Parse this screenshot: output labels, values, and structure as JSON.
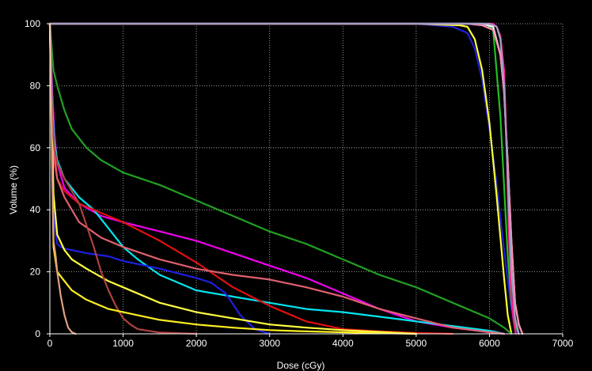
{
  "chart_data": {
    "type": "line",
    "title": "",
    "xlabel": "Dose (cGy)",
    "ylabel": "Volume (%)",
    "xlim": [
      0,
      7000
    ],
    "ylim": [
      0,
      100
    ],
    "xticks": [
      0,
      1000,
      2000,
      3000,
      4000,
      5000,
      6000,
      7000
    ],
    "yticks": [
      0,
      20,
      40,
      60,
      80,
      100
    ],
    "grid": true,
    "background": "#000000",
    "grid_color": "#bfbfbf",
    "series": [
      {
        "color": "#1f1fd8",
        "x": [
          0,
          5000,
          5500,
          5700,
          5800,
          5900,
          6000,
          6100,
          6200,
          6300,
          6350,
          6400
        ],
        "y": [
          100,
          100,
          99,
          97,
          92,
          82,
          66,
          48,
          27,
          8,
          2,
          0
        ]
      },
      {
        "color": "#ffff33",
        "x": [
          0,
          5000,
          5600,
          5700,
          5800,
          5900,
          6000,
          6100,
          6200,
          6250,
          6300
        ],
        "y": [
          100,
          100,
          99.5,
          99,
          95,
          85,
          68,
          44,
          18,
          6,
          0
        ]
      },
      {
        "color": "#22c022",
        "x": [
          0,
          5800,
          5950,
          6050,
          6150,
          6250,
          6300,
          6350,
          6400
        ],
        "y": [
          100,
          100,
          100,
          98,
          70,
          25,
          10,
          3,
          0
        ]
      },
      {
        "color": "#ffffff",
        "x": [
          0,
          5900,
          6050,
          6150,
          6200,
          6250,
          6300,
          6350,
          6400,
          6450
        ],
        "y": [
          100,
          100,
          99,
          90,
          78,
          55,
          30,
          10,
          3,
          0
        ]
      },
      {
        "color": "#ff8fb0",
        "x": [
          0,
          5700,
          5900,
          6050,
          6150,
          6200,
          6250,
          6300,
          6350,
          6400,
          6450
        ],
        "y": [
          100,
          100,
          99.5,
          98,
          90,
          78,
          55,
          30,
          10,
          3,
          0
        ]
      },
      {
        "color": "#ff1a8c",
        "x": [
          0,
          5950,
          6050,
          6100,
          6150,
          6200,
          6230,
          6260,
          6300,
          6330,
          6360
        ],
        "y": [
          100,
          100,
          100,
          99,
          96,
          85,
          65,
          35,
          12,
          4,
          0
        ]
      },
      {
        "color": "#a0a0c8",
        "x": [
          0,
          6000,
          6100,
          6150,
          6200,
          6250,
          6300,
          6350,
          6400
        ],
        "y": [
          100,
          100,
          99,
          95,
          80,
          50,
          20,
          5,
          0
        ]
      },
      {
        "color": "#22a022",
        "x": [
          0,
          50,
          100,
          200,
          300,
          500,
          700,
          1000,
          1500,
          2000,
          2500,
          3000,
          3500,
          4000,
          4500,
          5000,
          5500,
          6000,
          6200,
          6300
        ],
        "y": [
          100,
          85,
          80,
          72,
          66,
          60,
          56,
          52,
          48,
          43,
          38,
          33,
          29,
          24,
          19,
          15,
          10,
          5,
          2,
          0
        ]
      },
      {
        "color": "#ee00ee",
        "x": [
          0,
          30,
          60,
          100,
          200,
          400,
          700,
          1000,
          1500,
          2000,
          2500,
          3000,
          3500,
          4000,
          4500,
          5000,
          5500,
          6000,
          6200
        ],
        "y": [
          100,
          80,
          65,
          55,
          47,
          42,
          38,
          36,
          33,
          30,
          26,
          22,
          18,
          13,
          8,
          4,
          2,
          0.5,
          0
        ]
      },
      {
        "color": "#00e5ee",
        "x": [
          0,
          30,
          60,
          100,
          200,
          400,
          600,
          800,
          1000,
          1200,
          1500,
          2000,
          2500,
          3000,
          3500,
          4000,
          4500,
          5000,
          5500,
          6000,
          6200
        ],
        "y": [
          100,
          75,
          62,
          56,
          50,
          44,
          40,
          34,
          28,
          24,
          19,
          14,
          12,
          10,
          8,
          7,
          5.5,
          4,
          2.5,
          1,
          0
        ]
      },
      {
        "color": "#e01010",
        "x": [
          0,
          30,
          60,
          100,
          200,
          400,
          700,
          1000,
          1500,
          2000,
          2500,
          3000,
          3500,
          4000,
          4500,
          5000,
          5500
        ],
        "y": [
          100,
          68,
          55,
          50,
          46,
          42,
          39,
          36,
          30,
          23,
          15,
          9,
          4,
          1.5,
          0.8,
          0.3,
          0
        ]
      },
      {
        "color": "#e06070",
        "x": [
          0,
          30,
          60,
          100,
          200,
          400,
          700,
          1000,
          1500,
          2000,
          2500,
          3000,
          3500,
          4000,
          4500,
          5000,
          5500,
          6000,
          6200
        ],
        "y": [
          100,
          72,
          58,
          50,
          44,
          36,
          31,
          28,
          24,
          21,
          19,
          17.5,
          15,
          12,
          8,
          5,
          2,
          0.5,
          0
        ]
      },
      {
        "color": "#1f1fe0",
        "x": [
          0,
          50,
          80,
          100,
          150,
          200,
          300,
          500,
          800,
          1000,
          1500,
          2000,
          2200,
          2400,
          2600,
          2800,
          3000
        ],
        "y": [
          100,
          40,
          32,
          29,
          28,
          27.5,
          27,
          26,
          25,
          23.5,
          21,
          18,
          16.5,
          13,
          6,
          1.5,
          0
        ]
      },
      {
        "color": "#ffff40",
        "x": [
          0,
          50,
          100,
          200,
          300,
          500,
          800,
          1000,
          1500,
          2000,
          2500,
          3000,
          3500,
          4000,
          4500,
          5000
        ],
        "y": [
          100,
          45,
          32,
          27,
          24,
          21,
          17,
          15,
          10,
          7,
          5,
          3,
          2,
          1.2,
          0.6,
          0
        ]
      },
      {
        "color": "#b04040",
        "x": [
          0,
          30,
          60,
          100,
          200,
          300,
          400,
          500,
          600,
          700,
          800,
          900,
          1000,
          1100,
          1200,
          1500,
          2000
        ],
        "y": [
          100,
          70,
          60,
          55,
          50,
          46,
          42,
          35,
          28,
          20,
          14,
          9,
          5,
          3,
          1.5,
          0.4,
          0
        ]
      },
      {
        "color": "#ffee22",
        "x": [
          0,
          50,
          100,
          200,
          300,
          500,
          800,
          1000,
          1500,
          2000,
          2500,
          3000,
          3500,
          4000,
          4500,
          5000
        ],
        "y": [
          100,
          28,
          20,
          17,
          14,
          11,
          8,
          7,
          4.5,
          3,
          2,
          1.2,
          0.8,
          0.5,
          0.2,
          0
        ]
      },
      {
        "color": "#e0a080",
        "x": [
          0,
          50,
          80,
          100,
          150,
          200,
          250,
          300,
          350
        ],
        "y": [
          100,
          30,
          25,
          20,
          12,
          6,
          2,
          0.5,
          0
        ]
      }
    ]
  }
}
